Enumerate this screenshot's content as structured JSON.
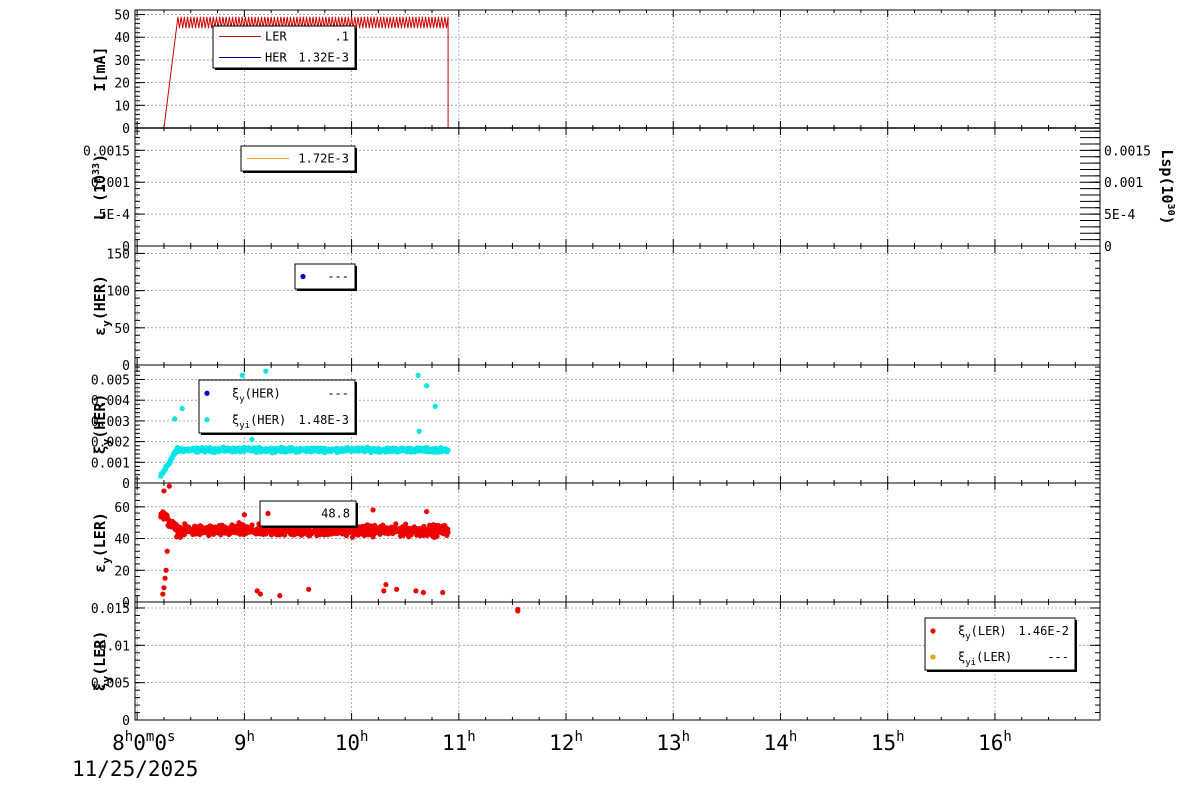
{
  "chart_data": {
    "type": "line",
    "x_axis": {
      "tick_labels": [
        {
          "h": "8",
          "rest": "0m0s",
          "hour": 8
        },
        {
          "h": "9",
          "hour": 9
        },
        {
          "h": "10",
          "hour": 10
        },
        {
          "h": "11",
          "hour": 11
        },
        {
          "h": "12",
          "hour": 12
        },
        {
          "h": "13",
          "hour": 13
        },
        {
          "h": "14",
          "hour": 14
        },
        {
          "h": "15",
          "hour": 15
        },
        {
          "h": "16",
          "hour": 16
        }
      ],
      "date": "11/25/2025",
      "range": [
        7.98,
        16.98
      ]
    },
    "panels": [
      {
        "ylabel": "I[mA]",
        "ylim": [
          0,
          52
        ],
        "yticks": [
          "0",
          "10",
          "20",
          "30",
          "40",
          "50"
        ],
        "ytick_values": [
          0,
          10,
          20,
          30,
          40,
          50
        ],
        "legend": [
          {
            "name": "LER",
            "value": ".1",
            "color": "#cc0000",
            "kind": "line"
          },
          {
            "name": "HER",
            "value": "1.32E-3",
            "color": "#000080",
            "kind": "line"
          }
        ],
        "series": [
          {
            "name": "LER",
            "color": "#cc0000",
            "kind": "sawtooth",
            "ramp_start": 8.25,
            "plateau_start": 8.38,
            "end": 10.9,
            "low": 44,
            "high": 49
          },
          {
            "name": "HER",
            "color": "#000080",
            "kind": "flat",
            "value": 0
          }
        ]
      },
      {
        "ylabel": "L (10",
        "ylabel_sup": "33",
        "ylabel_end": ")",
        "ylim": [
          0,
          0.00185
        ],
        "yticks": [
          "0",
          "5E-4",
          "0.001",
          "0.0015"
        ],
        "ytick_values": [
          0,
          0.0005,
          0.001,
          0.0015
        ],
        "right_ylabel": "Lsp(10",
        "right_ylabel_sup": "30",
        "right_ylabel_end": ")",
        "right_yticks": [
          "0",
          "5E-4",
          "0.001",
          "0.0015"
        ],
        "legend": [
          {
            "name": "",
            "value": "1.72E-3",
            "color": "#e6a000",
            "kind": "line"
          }
        ],
        "series": []
      },
      {
        "ylabel": "ε",
        "ylabel_sub": "y",
        "ylabel_end": "(HER)",
        "ylim": [
          0,
          160
        ],
        "yticks": [
          "0",
          "50",
          "100",
          "150"
        ],
        "ytick_values": [
          0,
          50,
          100,
          150
        ],
        "legend": [
          {
            "name": "",
            "value": "---",
            "color": "#0000cc",
            "kind": "dot"
          }
        ],
        "series": []
      },
      {
        "ylabel": "ξ",
        "ylabel_sub": "y",
        "ylabel_end": "(HER)",
        "ylim": [
          0,
          0.0057
        ],
        "yticks": [
          "0",
          "0.001",
          "0.002",
          "0.003",
          "0.004",
          "0.005"
        ],
        "ytick_values": [
          0,
          0.001,
          0.002,
          0.003,
          0.004,
          0.005
        ],
        "legend": [
          {
            "name": "ξ",
            "sub": "y",
            "suffix": "(HER)",
            "value": "---",
            "color": "#0000cc",
            "kind": "dot"
          },
          {
            "name": "ξ",
            "sub": "yi",
            "suffix": "(HER)",
            "value": "1.48E-3",
            "color": "#00e5e5",
            "kind": "dot"
          }
        ],
        "series": [
          {
            "name": "ξyi(HER)",
            "color": "#00e5e5",
            "kind": "scatter-band",
            "start": 8.22,
            "end": 10.9,
            "base": 0.0016,
            "spread": 0.00015,
            "outliers": [
              [
                8.98,
                0.0052
              ],
              [
                9.2,
                0.0054
              ],
              [
                9.18,
                0.0049
              ],
              [
                9.0,
                0.0045
              ],
              [
                9.27,
                0.0038
              ],
              [
                9.8,
                0.0043
              ],
              [
                10.62,
                0.0052
              ],
              [
                10.7,
                0.0047
              ],
              [
                10.78,
                0.0037
              ],
              [
                8.35,
                0.0031
              ],
              [
                8.42,
                0.0036
              ],
              [
                9.07,
                0.0021
              ],
              [
                10.63,
                0.0025
              ],
              [
                9.45,
                0.0039
              ]
            ]
          }
        ]
      },
      {
        "ylabel": "ε",
        "ylabel_sub": "y",
        "ylabel_end": "(LER)",
        "ylim": [
          0,
          75
        ],
        "yticks": [
          "0",
          "20",
          "40",
          "60"
        ],
        "ytick_values": [
          0,
          20,
          40,
          60
        ],
        "legend": [
          {
            "name": "",
            "value": "48.8",
            "color": "#ee0000",
            "kind": "dot"
          }
        ],
        "series": [
          {
            "name": "εy(LER)",
            "color": "#ee0000",
            "kind": "scatter-band",
            "start": 8.22,
            "end": 10.9,
            "base": 45,
            "spread": 5,
            "outliers": [
              [
                8.25,
                70
              ],
              [
                8.3,
                73
              ],
              [
                8.26,
                15
              ],
              [
                8.27,
                20
              ],
              [
                8.24,
                5
              ],
              [
                8.25,
                9
              ],
              [
                8.28,
                32
              ],
              [
                9.12,
                7
              ],
              [
                9.15,
                5
              ],
              [
                9.33,
                4
              ],
              [
                9.6,
                8
              ],
              [
                10.3,
                7
              ],
              [
                10.32,
                11
              ],
              [
                10.42,
                8
              ],
              [
                10.6,
                7
              ],
              [
                10.67,
                6
              ],
              [
                10.85,
                6
              ],
              [
                8.95,
                50
              ],
              [
                9.0,
                55
              ],
              [
                10.7,
                57
              ],
              [
                10.2,
                58
              ]
            ]
          }
        ]
      },
      {
        "ylabel": "ξ",
        "ylabel_sub": "y",
        "ylabel_end": "(LER)",
        "ylim": [
          0,
          0.0158
        ],
        "yticks": [
          "0",
          "0.005",
          "0.01",
          "0.015"
        ],
        "ytick_values": [
          0,
          0.005,
          0.01,
          0.015
        ],
        "legend": [
          {
            "name": "ξ",
            "sub": "y",
            "suffix": "(LER)",
            "value": "1.46E-2",
            "color": "#ee0000",
            "kind": "dot"
          },
          {
            "name": "ξ",
            "sub": "yi",
            "suffix": "(LER)",
            "value": "---",
            "color": "#f0a000",
            "kind": "dot"
          }
        ],
        "series": [
          {
            "name": "ξy(LER)",
            "color": "#ee0000",
            "kind": "points",
            "points": [
              [
                11.55,
                0.0146
              ],
              [
                11.55,
                0.0148
              ]
            ]
          }
        ]
      }
    ]
  }
}
